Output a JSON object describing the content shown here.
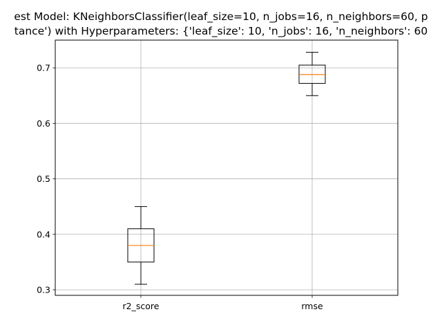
{
  "chart_data": {
    "type": "box",
    "title_lines": [
      "est Model: KNeighborsClassifier(leaf_size=10, n_jobs=16, n_neighbors=60, p",
      "tance') with Hyperparameters: {'leaf_size': 10, 'n_jobs': 16, 'n_neighbors': 60"
    ],
    "xlabel": "",
    "ylabel": "",
    "categories": [
      "r2_score",
      "rmse"
    ],
    "boxes": [
      {
        "label": "r2_score",
        "whisker_low": 0.31,
        "q1": 0.35,
        "median": 0.38,
        "q3": 0.41,
        "whisker_high": 0.45
      },
      {
        "label": "rmse",
        "whisker_low": 0.65,
        "q1": 0.672,
        "median": 0.688,
        "q3": 0.705,
        "whisker_high": 0.728
      }
    ],
    "ylim": [
      0.29,
      0.75
    ],
    "yticks": [
      0.3,
      0.4,
      0.5,
      0.6,
      0.7
    ],
    "ytick_labels": [
      "0.3",
      "0.4",
      "0.5",
      "0.6",
      "0.7"
    ],
    "grid": true,
    "colors": {
      "box": "#000000",
      "median": "#ff7f0e",
      "grid": "#b0b0b0"
    }
  }
}
